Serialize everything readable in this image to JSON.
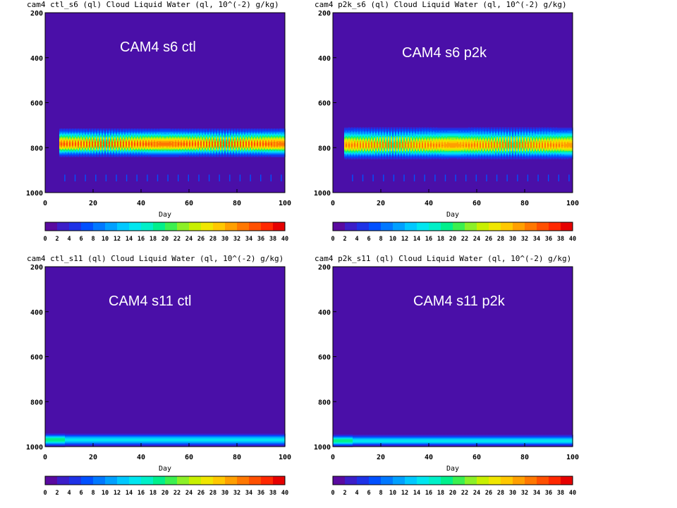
{
  "colorbar": {
    "ticks": [
      "0",
      "2",
      "4",
      "6",
      "8",
      "10",
      "12",
      "14",
      "16",
      "18",
      "20",
      "22",
      "24",
      "26",
      "28",
      "30",
      "32",
      "34",
      "36",
      "38",
      "40"
    ],
    "colors": [
      "#5a0aa0",
      "#3c1ec8",
      "#1e32e6",
      "#0050ff",
      "#0078ff",
      "#00a0ff",
      "#00c8ff",
      "#00e6f0",
      "#00f0c8",
      "#00f08c",
      "#3cf050",
      "#8cf028",
      "#c8f000",
      "#f0e600",
      "#ffc800",
      "#ffa000",
      "#ff7800",
      "#ff5000",
      "#ff2800",
      "#e60000"
    ]
  },
  "background_color": "#4a0fa8",
  "chart_data": [
    {
      "type": "heatmap",
      "overlay_label": "CAM4 s6 ctl",
      "title": "cam4 ctl_s6  (ql)  Cloud Liquid Water (ql, 10^(-2) g/kg)",
      "xlabel": "Day",
      "x_ticks": [
        "0",
        "20",
        "40",
        "60",
        "80",
        "100"
      ],
      "y_ticks": [
        "200",
        "400",
        "600",
        "800",
        "1000"
      ],
      "xlim": [
        0,
        100
      ],
      "ylim": [
        1000,
        200
      ],
      "layer": {
        "bottom": 840,
        "top": 715,
        "center": 785,
        "cycles": 43,
        "peak": 36,
        "spinup_days": 6
      },
      "lower_drizzle": true
    },
    {
      "type": "heatmap",
      "overlay_label": "CAM4 s6 p2k",
      "title": "cam4 p2k_s6  (ql)  Cloud Liquid Water (ql, 10^(-2) g/kg)",
      "xlabel": "Day",
      "x_ticks": [
        "0",
        "20",
        "40",
        "60",
        "80",
        "100"
      ],
      "y_ticks": [
        "200",
        "400",
        "600",
        "800",
        "1000"
      ],
      "xlim": [
        0,
        100
      ],
      "ylim": [
        1000,
        200
      ],
      "layer": {
        "bottom": 850,
        "top": 710,
        "center": 790,
        "cycles": 43,
        "peak": 34,
        "spinup_days": 5
      },
      "lower_drizzle": true
    },
    {
      "type": "heatmap",
      "overlay_label": "CAM4 s11 ctl",
      "title": "cam4 ctl_s11  (ql)  Cloud Liquid Water (ql, 10^(-2) g/kg)",
      "xlabel": "Day",
      "x_ticks": [
        "0",
        "20",
        "40",
        "60",
        "80",
        "100"
      ],
      "y_ticks": [
        "200",
        "400",
        "600",
        "800",
        "1000"
      ],
      "xlim": [
        0,
        100
      ],
      "ylim": [
        1000,
        200
      ],
      "layer": {
        "bottom": 1000,
        "top": 940,
        "center": 970,
        "cycles": 0,
        "peak": 20,
        "spinup_days": 0
      },
      "lower_drizzle": false
    },
    {
      "type": "heatmap",
      "overlay_label": "CAM4 s11 p2k",
      "title": "cam4 p2k_s11  (ql)  Cloud Liquid Water (ql, 10^(-2) g/kg)",
      "xlabel": "Day",
      "x_ticks": [
        "0",
        "20",
        "40",
        "60",
        "80",
        "100"
      ],
      "y_ticks": [
        "200",
        "400",
        "600",
        "800",
        "1000"
      ],
      "xlim": [
        0,
        100
      ],
      "ylim": [
        1000,
        200
      ],
      "layer": {
        "bottom": 1000,
        "top": 945,
        "center": 975,
        "cycles": 0,
        "peak": 20,
        "spinup_days": 0
      },
      "lower_drizzle": false
    }
  ]
}
